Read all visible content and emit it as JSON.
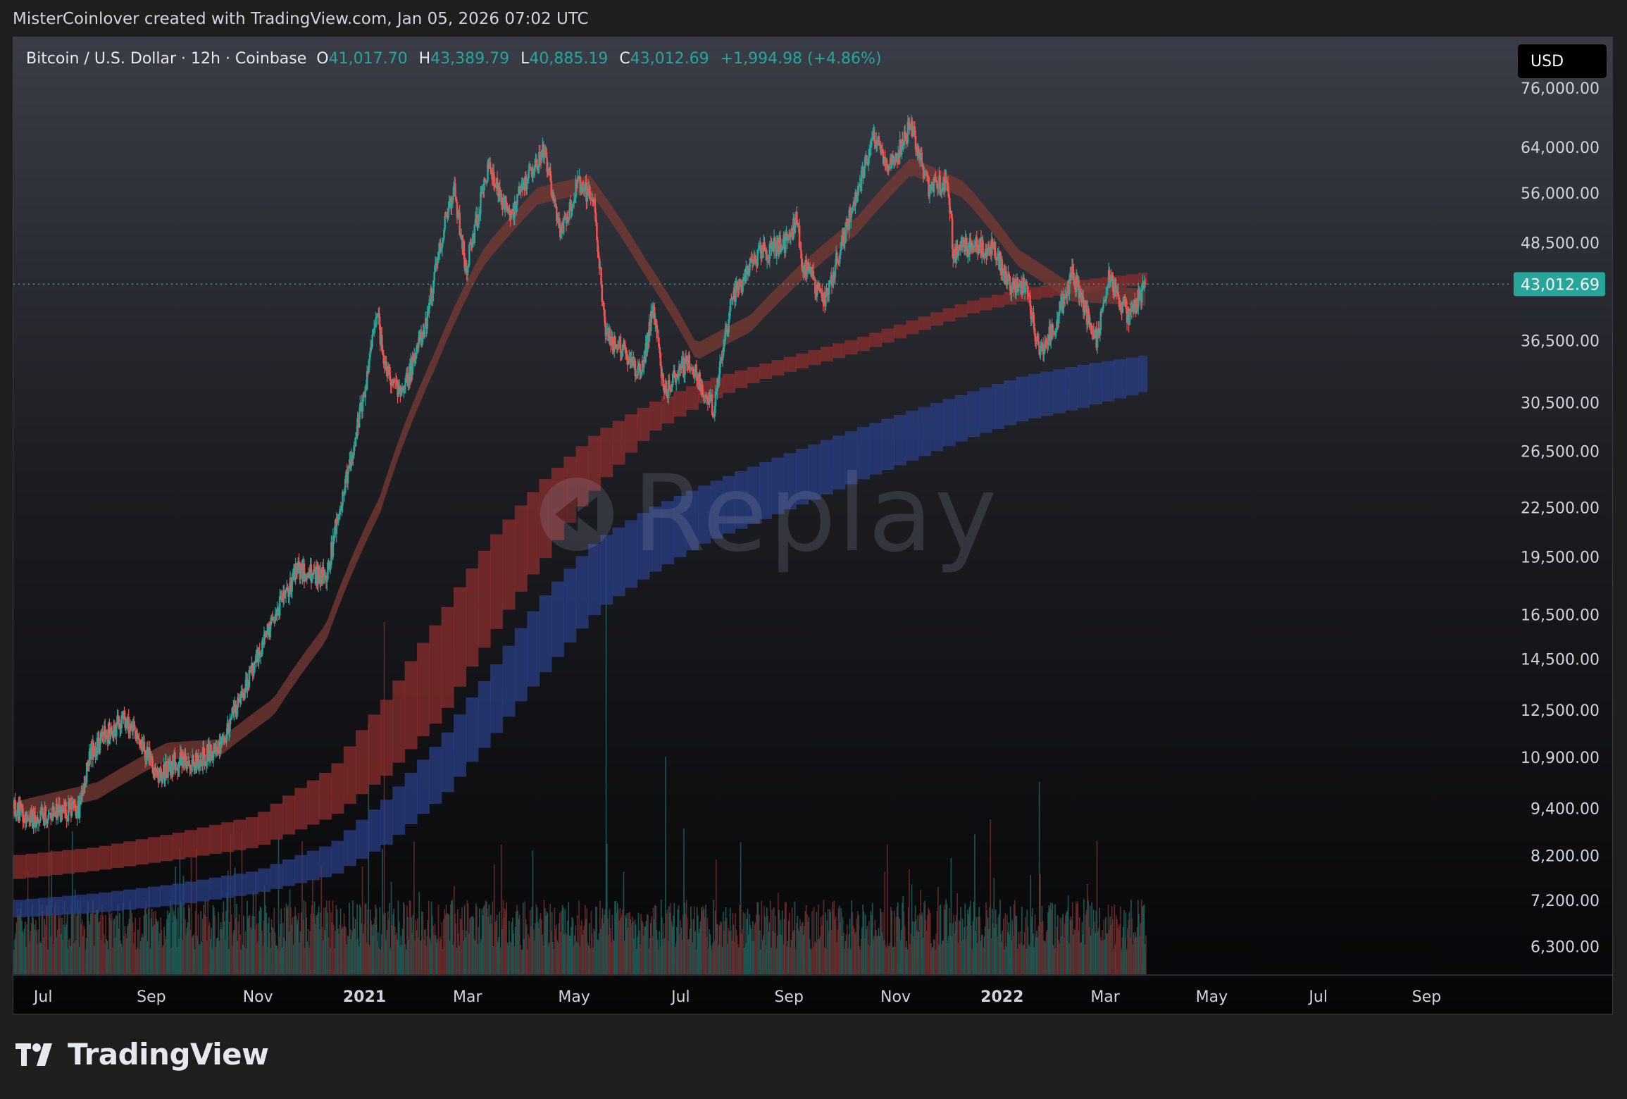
{
  "attribution": "MisterCoinlover created with TradingView.com, Jan 05, 2026 07:02 UTC",
  "legend": {
    "symbol": "Bitcoin / U.S. Dollar · 12h · Coinbase",
    "open_label": "O",
    "open": "41,017.70",
    "high_label": "H",
    "high": "43,389.79",
    "low_label": "L",
    "low": "40,885.19",
    "close_label": "C",
    "close": "43,012.69",
    "change": "+1,994.98 (+4.86%)"
  },
  "currency": "USD",
  "watermark": "Replay",
  "footer_brand": "TradingView",
  "colors": {
    "up": "#26a69a",
    "down": "#ef5350",
    "red_band": "#8b2e2e",
    "blue_band": "#2a3f86",
    "price_tag": "#26a69a"
  },
  "chart_data": {
    "type": "candlestick",
    "symbol": "BTC/USD",
    "interval": "12h",
    "y_scale": "log",
    "ylim": [
      5800,
      88000
    ],
    "x_range": [
      "2020-06-14",
      "2022-10-20"
    ],
    "y_ticks": [
      "76,000.00",
      "64,000.00",
      "56,000.00",
      "48,500.00",
      "36,500.00",
      "30,500.00",
      "26,500.00",
      "22,500.00",
      "19,500.00",
      "16,500.00",
      "14,500.00",
      "12,500.00",
      "10,900.00",
      "9,400.00",
      "8,200.00",
      "7,200.00",
      "6,300.00"
    ],
    "x_ticks": [
      {
        "label": "Jul",
        "date": "2020-07-01"
      },
      {
        "label": "Sep",
        "date": "2020-09-01"
      },
      {
        "label": "Nov",
        "date": "2020-11-01"
      },
      {
        "label": "2021",
        "date": "2021-01-01",
        "bold": true
      },
      {
        "label": "Mar",
        "date": "2021-03-01"
      },
      {
        "label": "May",
        "date": "2021-05-01"
      },
      {
        "label": "Jul",
        "date": "2021-07-01"
      },
      {
        "label": "Sep",
        "date": "2021-09-01"
      },
      {
        "label": "Nov",
        "date": "2021-11-01"
      },
      {
        "label": "2022",
        "date": "2022-01-01",
        "bold": true
      },
      {
        "label": "Mar",
        "date": "2022-03-01"
      },
      {
        "label": "May",
        "date": "2022-05-01"
      },
      {
        "label": "Jul",
        "date": "2022-07-01"
      },
      {
        "label": "Sep",
        "date": "2022-09-01"
      }
    ],
    "last_price": 43012.69,
    "last_price_label": "43,012.69",
    "price_path": [
      [
        "2020-06-14",
        9400
      ],
      [
        "2020-06-25",
        9150
      ],
      [
        "2020-07-10",
        9300
      ],
      [
        "2020-07-22",
        9400
      ],
      [
        "2020-07-28",
        11000
      ],
      [
        "2020-08-05",
        11600
      ],
      [
        "2020-08-17",
        12200
      ],
      [
        "2020-08-25",
        11500
      ],
      [
        "2020-09-05",
        10300
      ],
      [
        "2020-09-15",
        10800
      ],
      [
        "2020-09-25",
        10700
      ],
      [
        "2020-10-10",
        11300
      ],
      [
        "2020-10-22",
        12900
      ],
      [
        "2020-11-05",
        15500
      ],
      [
        "2020-11-24",
        18800
      ],
      [
        "2020-12-10",
        18400
      ],
      [
        "2020-12-20",
        23500
      ],
      [
        "2021-01-03",
        33000
      ],
      [
        "2021-01-08",
        40000
      ],
      [
        "2021-01-12",
        34000
      ],
      [
        "2021-01-22",
        31000
      ],
      [
        "2021-02-05",
        38000
      ],
      [
        "2021-02-12",
        47000
      ],
      [
        "2021-02-21",
        57000
      ],
      [
        "2021-02-28",
        45000
      ],
      [
        "2021-03-13",
        60500
      ],
      [
        "2021-03-25",
        52500
      ],
      [
        "2021-04-05",
        58500
      ],
      [
        "2021-04-14",
        63500
      ],
      [
        "2021-04-23",
        49500
      ],
      [
        "2021-05-03",
        57500
      ],
      [
        "2021-05-12",
        55000
      ],
      [
        "2021-05-19",
        37000
      ],
      [
        "2021-05-30",
        35500
      ],
      [
        "2021-06-08",
        33000
      ],
      [
        "2021-06-15",
        40000
      ],
      [
        "2021-06-22",
        31500
      ],
      [
        "2021-07-05",
        34500
      ],
      [
        "2021-07-20",
        30000
      ],
      [
        "2021-07-30",
        41000
      ],
      [
        "2021-08-14",
        47000
      ],
      [
        "2021-08-30",
        48500
      ],
      [
        "2021-09-06",
        52000
      ],
      [
        "2021-09-08",
        46000
      ],
      [
        "2021-09-21",
        41000
      ],
      [
        "2021-10-01",
        48000
      ],
      [
        "2021-10-15",
        61000
      ],
      [
        "2021-10-20",
        66000
      ],
      [
        "2021-10-28",
        60000
      ],
      [
        "2021-11-10",
        68500
      ],
      [
        "2021-11-20",
        57000
      ],
      [
        "2021-12-01",
        57500
      ],
      [
        "2021-12-04",
        47500
      ],
      [
        "2021-12-15",
        48000
      ],
      [
        "2021-12-28",
        47500
      ],
      [
        "2022-01-05",
        43000
      ],
      [
        "2022-01-15",
        42500
      ],
      [
        "2022-01-22",
        35000
      ],
      [
        "2022-02-01",
        38500
      ],
      [
        "2022-02-10",
        44500
      ],
      [
        "2022-02-24",
        36500
      ],
      [
        "2022-03-03",
        44000
      ],
      [
        "2022-03-15",
        39000
      ],
      [
        "2022-03-24",
        43012
      ]
    ],
    "red_band": {
      "dates": [
        "2020-06-14",
        "2020-08-01",
        "2020-09-15",
        "2020-11-01",
        "2020-12-15",
        "2021-01-15",
        "2021-02-15",
        "2021-03-15",
        "2021-04-15",
        "2021-05-15",
        "2021-06-15",
        "2021-07-15",
        "2021-08-15",
        "2021-09-15",
        "2021-10-15",
        "2021-11-15",
        "2021-12-15",
        "2022-01-15",
        "2022-02-15",
        "2022-03-25"
      ],
      "upper": [
        8200,
        8400,
        8750,
        9200,
        10600,
        13000,
        16500,
        20500,
        24500,
        28000,
        30500,
        32500,
        34000,
        35500,
        37000,
        39000,
        41000,
        42500,
        43500,
        44500
      ],
      "lower": [
        7650,
        7850,
        8100,
        8400,
        9200,
        10400,
        12300,
        15500,
        19500,
        24000,
        28000,
        30500,
        32500,
        34000,
        35500,
        37500,
        39500,
        41000,
        42000,
        43000
      ]
    },
    "blue_band": {
      "dates": [
        "2020-06-14",
        "2020-08-01",
        "2020-09-15",
        "2020-11-01",
        "2020-12-15",
        "2021-01-15",
        "2021-02-15",
        "2021-03-15",
        "2021-04-15",
        "2021-05-15",
        "2021-06-15",
        "2021-07-15",
        "2021-08-15",
        "2021-09-15",
        "2021-10-15",
        "2021-11-15",
        "2021-12-15",
        "2022-01-15",
        "2022-02-15",
        "2022-03-25"
      ],
      "upper": [
        7200,
        7350,
        7550,
        7850,
        8500,
        9700,
        11500,
        14000,
        17500,
        20500,
        22500,
        24000,
        25500,
        27000,
        28500,
        30000,
        31500,
        33000,
        34000,
        35000
      ],
      "lower": [
        6850,
        6950,
        7100,
        7350,
        7750,
        8500,
        9700,
        11500,
        14000,
        16700,
        18600,
        20300,
        21600,
        23000,
        24500,
        26000,
        27600,
        29000,
        30000,
        31500
      ]
    },
    "ema_path": {
      "dates": [
        "2020-06-14",
        "2020-08-01",
        "2020-09-10",
        "2020-10-10",
        "2020-11-10",
        "2020-12-10",
        "2021-01-10",
        "2021-02-10",
        "2021-03-10",
        "2021-04-10",
        "2021-05-10",
        "2021-06-10",
        "2021-07-10",
        "2021-08-10",
        "2021-09-10",
        "2021-10-10",
        "2021-11-10",
        "2021-12-10",
        "2022-01-10",
        "2022-02-10",
        "2022-03-25"
      ],
      "values": [
        9250,
        9800,
        11000,
        11100,
        12500,
        15500,
        22500,
        34000,
        46000,
        55000,
        57000,
        45000,
        35000,
        38000,
        44500,
        50500,
        60000,
        56000,
        46000,
        41500,
        41000
      ]
    },
    "volume_ylim": [
      0,
      520000
    ],
    "volume": {
      "peaks": [
        [
          "2021-01-03",
          300000
        ],
        [
          "2021-01-12",
          420000
        ],
        [
          "2021-05-19",
          520000
        ],
        [
          "2021-06-22",
          260000
        ],
        [
          "2022-01-22",
          230000
        ],
        [
          "2022-02-24",
          160000
        ]
      ]
    }
  }
}
